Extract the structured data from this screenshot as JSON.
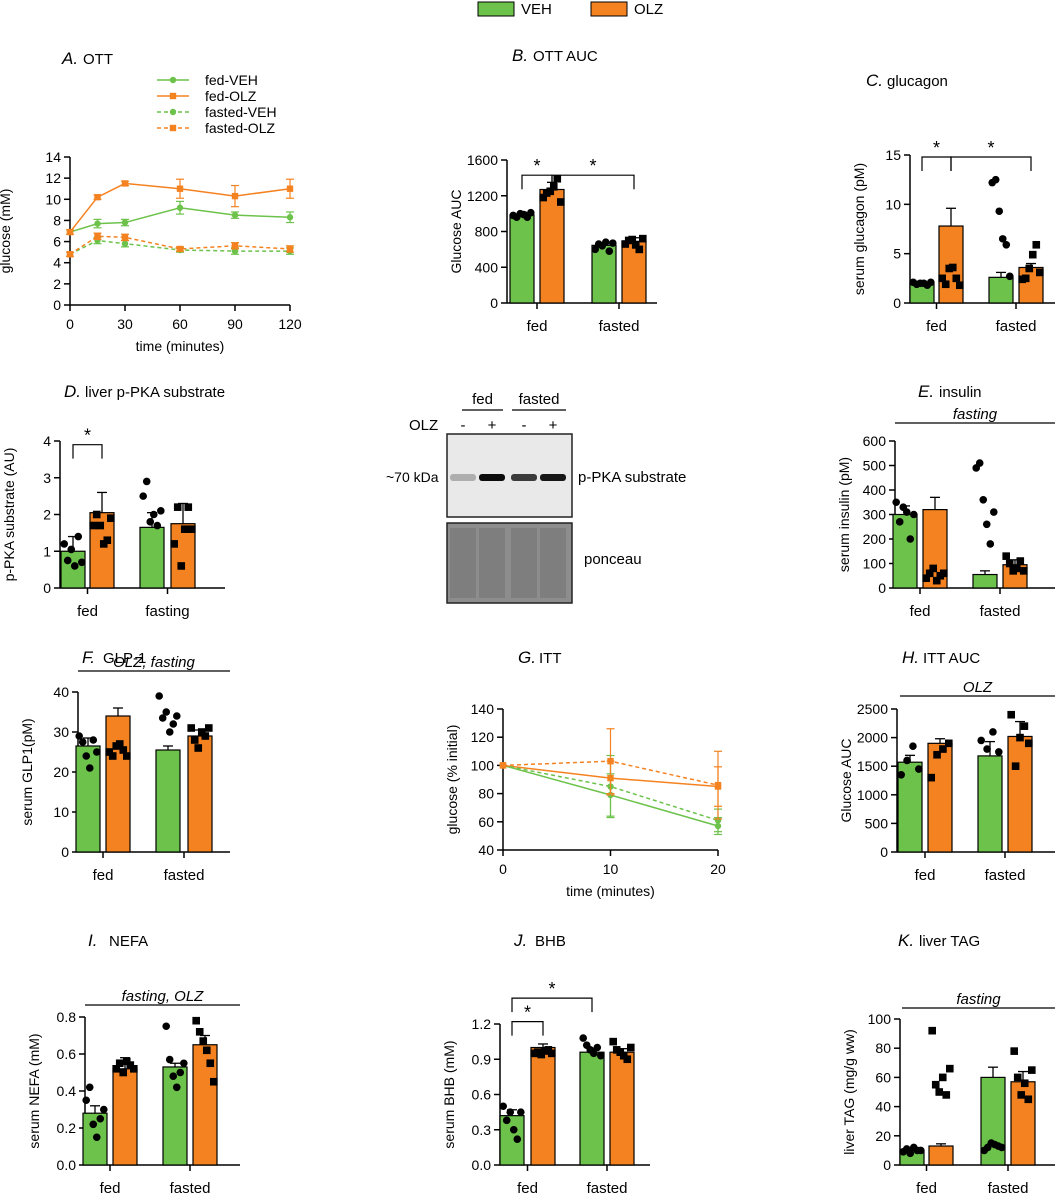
{
  "legend": {
    "items": [
      {
        "label": "VEH",
        "color": "#6CC24A"
      },
      {
        "label": "OLZ",
        "color": "#F58220"
      }
    ]
  },
  "colors": {
    "veh": "#6CC24A",
    "olz": "#F58220"
  },
  "chart_data": [
    {
      "id": "A",
      "type": "line",
      "letter": "A.",
      "title": "OTT",
      "xlabel": "time (minutes)",
      "ylabel": "glucose (mM)",
      "x": [
        0,
        15,
        30,
        60,
        90,
        120
      ],
      "xticks": [
        0,
        30,
        60,
        90,
        120
      ],
      "ylim": [
        0,
        14
      ],
      "yticks": [
        0,
        2,
        4,
        6,
        8,
        10,
        12,
        14
      ],
      "series": [
        {
          "name": "fed-VEH",
          "group": "veh",
          "marker": "circle",
          "dashed": false,
          "values": [
            6.9,
            7.7,
            7.8,
            9.2,
            8.5,
            8.3
          ],
          "err": [
            0.2,
            0.4,
            0.3,
            0.6,
            0.3,
            0.5
          ]
        },
        {
          "name": "fed-OLZ",
          "group": "olz",
          "marker": "square",
          "dashed": false,
          "values": [
            6.9,
            10.2,
            11.5,
            11.0,
            10.3,
            11.0
          ],
          "err": [
            0.2,
            0.2,
            0.2,
            0.9,
            1.0,
            0.9
          ]
        },
        {
          "name": "fasted-VEH",
          "group": "veh",
          "marker": "circle",
          "dashed": true,
          "values": [
            4.8,
            6.1,
            5.8,
            5.2,
            5.1,
            5.1
          ],
          "err": [
            0.2,
            0.3,
            0.3,
            0.2,
            0.3,
            0.3
          ]
        },
        {
          "name": "fasted-OLZ",
          "group": "olz",
          "marker": "square",
          "dashed": true,
          "values": [
            4.8,
            6.5,
            6.4,
            5.3,
            5.6,
            5.3
          ],
          "err": [
            0.2,
            0.3,
            0.3,
            0.2,
            0.3,
            0.3
          ]
        }
      ]
    },
    {
      "id": "B",
      "type": "bar",
      "letter": "B.",
      "title": "OTT AUC",
      "ylabel": "Glucose AUC",
      "categories": [
        "fed",
        "fasted"
      ],
      "ylim": [
        0,
        1600
      ],
      "yticks": [
        0,
        400,
        800,
        1200,
        1600
      ],
      "series": [
        {
          "group": "veh",
          "values": [
            985,
            645
          ],
          "err": [
            30,
            30
          ]
        },
        {
          "group": "olz",
          "values": [
            1270,
            690
          ],
          "err": [
            80,
            40
          ]
        }
      ],
      "points": [
        [
          [
            980,
            960,
            1000,
            990,
            960,
            1010
          ],
          [
            1180,
            1230,
            1250,
            1300,
            1390,
            1130
          ]
        ],
        [
          [
            600,
            660,
            640,
            680,
            580,
            670
          ],
          [
            660,
            700,
            710,
            650,
            600,
            720
          ]
        ]
      ],
      "brackets": [
        {
          "from": [
            0,
            0
          ],
          "to": [
            0,
            1
          ],
          "label": "*",
          "y": 1430
        },
        {
          "from": [
            0,
            1
          ],
          "to": [
            1,
            1
          ],
          "label": "*",
          "y": 1430
        }
      ]
    },
    {
      "id": "C",
      "type": "bar",
      "letter": "C.",
      "title": "glucagon",
      "ylabel": "serum glucagon (pM)",
      "categories": [
        "fed",
        "fasted"
      ],
      "ylim": [
        0,
        15
      ],
      "yticks": [
        0,
        5,
        10,
        15
      ],
      "series": [
        {
          "group": "veh",
          "values": [
            2.0,
            2.6
          ],
          "err": [
            0.2,
            0.5
          ]
        },
        {
          "group": "olz",
          "values": [
            7.8,
            3.6
          ],
          "err": [
            1.8,
            0.4
          ]
        }
      ],
      "points": [
        [
          [
            2.1,
            1.9,
            2.0,
            2.0,
            1.8,
            2.1
          ],
          [
            2.5,
            1.9,
            3.5,
            3.6,
            2.5,
            1.8
          ]
        ],
        [
          [
            12.2,
            12.5,
            9.3,
            6.5,
            5.9,
            2.7
          ],
          [
            2.4,
            2.5,
            3.5,
            4.9,
            5.9,
            3.1
          ]
        ]
      ],
      "brackets": [
        {
          "from": [
            0,
            0
          ],
          "to": [
            0,
            1
          ],
          "label": "*",
          "y": 14.8
        },
        {
          "from": [
            0,
            1
          ],
          "to": [
            1,
            1
          ],
          "label": "*",
          "y": 14.8
        }
      ]
    },
    {
      "id": "D",
      "type": "bar",
      "letter": "D.",
      "title": "liver p-PKA substrate",
      "ylabel": "p-PKA substrate (AU)",
      "categories": [
        "fed",
        "fasting"
      ],
      "ylim": [
        0,
        4
      ],
      "yticks": [
        0,
        1,
        2,
        3,
        4
      ],
      "series": [
        {
          "group": "veh",
          "values": [
            1.0,
            1.65
          ],
          "err": [
            0.4,
            0.4
          ]
        },
        {
          "group": "olz",
          "values": [
            2.05,
            1.75
          ],
          "err": [
            0.55,
            0.55
          ]
        }
      ],
      "points": [
        [
          [
            1.2,
            0.75,
            1.05,
            0.6,
            1.4,
            0.7
          ],
          [
            1.7,
            2.0,
            1.7,
            1.2,
            1.3,
            1.9
          ]
        ],
        [
          [
            2.5,
            2.9,
            1.8,
            2.0,
            1.7,
            2.1
          ],
          [
            1.2,
            2.2,
            0.6,
            1.6,
            2.2,
            1.6
          ]
        ]
      ],
      "brackets": [
        {
          "from": [
            0,
            0
          ],
          "to": [
            0,
            1
          ],
          "label": "*",
          "y": 3.9
        }
      ]
    },
    {
      "id": "E",
      "type": "bar",
      "letter": "E.",
      "title": "insulin",
      "ylabel": "serum insulin (pM)",
      "note": "fasting",
      "categories": [
        "fed",
        "fasted"
      ],
      "ylim": [
        0,
        600
      ],
      "yticks": [
        0,
        100,
        200,
        300,
        400,
        500,
        600
      ],
      "series": [
        {
          "group": "veh",
          "values": [
            300,
            55
          ],
          "err": [
            35,
            15
          ]
        },
        {
          "group": "olz",
          "values": [
            320,
            95
          ],
          "err": [
            50,
            20
          ]
        }
      ],
      "points": [
        [
          [
            350,
            270,
            330,
            310,
            200,
            300
          ],
          [
            40,
            60,
            80,
            30,
            50,
            60
          ]
        ],
        [
          [
            490,
            510,
            360,
            260,
            180,
            310
          ],
          [
            130,
            100,
            70,
            80,
            110,
            70
          ]
        ]
      ]
    },
    {
      "id": "F",
      "type": "bar",
      "letter": "F.",
      "title": "GLP-1",
      "ylabel": "serum GLP1(pM)",
      "note": "OLZ, fasting",
      "categories": [
        "fed",
        "fasted"
      ],
      "ylim": [
        0,
        40
      ],
      "yticks": [
        0,
        10,
        20,
        30,
        40
      ],
      "series": [
        {
          "group": "veh",
          "values": [
            26.5,
            25.5
          ],
          "err": [
            2.0,
            1.0
          ]
        },
        {
          "group": "olz",
          "values": [
            34.0,
            29.0
          ],
          "err": [
            2.0,
            1.5
          ]
        }
      ],
      "points": [
        [
          [
            29,
            27.5,
            24,
            21,
            28,
            25
          ],
          [
            25,
            24,
            26.5,
            27,
            25.5,
            24
          ]
        ],
        [
          [
            39,
            33.5,
            35,
            30,
            32,
            34
          ],
          [
            31,
            28,
            26,
            30,
            29,
            31
          ]
        ]
      ]
    },
    {
      "id": "G",
      "type": "line",
      "letter": "G.",
      "title": "ITT",
      "xlabel": "time (minutes)",
      "ylabel": "glucose (% initial)",
      "x": [
        0,
        10,
        20
      ],
      "xticks": [
        0,
        10,
        20
      ],
      "ylim": [
        40,
        140
      ],
      "yticks": [
        40,
        60,
        80,
        100,
        120,
        140
      ],
      "series": [
        {
          "group": "veh",
          "marker": "circle",
          "dashed": false,
          "values": [
            100,
            79,
            57
          ],
          "err": [
            0,
            15,
            6
          ]
        },
        {
          "group": "olz",
          "marker": "square",
          "dashed": false,
          "values": [
            100,
            91,
            85
          ],
          "err": [
            0,
            12,
            14
          ]
        },
        {
          "group": "veh",
          "marker": "circle",
          "dashed": true,
          "values": [
            100,
            85,
            61
          ],
          "err": [
            0,
            22,
            8
          ]
        },
        {
          "group": "olz",
          "marker": "square",
          "dashed": true,
          "values": [
            100,
            103,
            86
          ],
          "err": [
            0,
            23,
            24
          ]
        }
      ]
    },
    {
      "id": "H",
      "type": "bar",
      "letter": "H.",
      "title": "ITT AUC",
      "ylabel": "Glucose AUC",
      "note": "OLZ",
      "categories": [
        "fed",
        "fasted"
      ],
      "ylim": [
        0,
        2500
      ],
      "yticks": [
        0,
        500,
        1000,
        1500,
        2000,
        2500
      ],
      "series": [
        {
          "group": "veh",
          "values": [
            1570,
            1680
          ],
          "err": [
            120,
            250
          ]
        },
        {
          "group": "olz",
          "values": [
            1900,
            2020
          ],
          "err": [
            80,
            260
          ]
        }
      ],
      "points": [
        [
          [
            1350,
            1600,
            1850,
            1450
          ],
          [
            1300,
            1700,
            1800,
            1900
          ]
        ],
        [
          [
            1950,
            1800,
            2100,
            1750
          ],
          [
            2400,
            1500,
            2000,
            2200,
            1900
          ]
        ]
      ]
    },
    {
      "id": "I",
      "type": "bar",
      "letter": "I.",
      "title": "NEFA",
      "ylabel": "serum NEFA (mM)",
      "note": "fasting, OLZ",
      "categories": [
        "fed",
        "fasted"
      ],
      "ylim": [
        0,
        0.8
      ],
      "yticks": [
        0.0,
        0.2,
        0.4,
        0.6,
        0.8
      ],
      "series": [
        {
          "group": "veh",
          "values": [
            0.28,
            0.53
          ],
          "err": [
            0.04,
            0.02
          ]
        },
        {
          "group": "olz",
          "values": [
            0.52,
            0.65
          ],
          "err": [
            0.06,
            0.05
          ]
        }
      ],
      "points": [
        [
          [
            0.35,
            0.42,
            0.22,
            0.15,
            0.25,
            0.3
          ],
          [
            0.52,
            0.55,
            0.5,
            0.56,
            0.54,
            0.52
          ]
        ],
        [
          [
            0.75,
            0.57,
            0.48,
            0.42,
            0.5,
            0.55
          ],
          [
            0.78,
            0.72,
            0.67,
            0.62,
            0.55,
            0.45
          ]
        ]
      ]
    },
    {
      "id": "J",
      "type": "bar",
      "letter": "J.",
      "title": "BHB",
      "ylabel": "serum BHB (mM)",
      "categories": [
        "fed",
        "fasted"
      ],
      "ylim": [
        0,
        1.2
      ],
      "yticks": [
        0.0,
        0.3,
        0.6,
        0.9,
        1.2
      ],
      "series": [
        {
          "group": "veh",
          "values": [
            0.42,
            0.96
          ],
          "err": [
            0.05,
            0.02
          ]
        },
        {
          "group": "olz",
          "values": [
            1.0,
            0.96
          ],
          "err": [
            0.03,
            0.03
          ]
        }
      ],
      "points": [
        [
          [
            0.5,
            0.38,
            0.45,
            0.3,
            0.22,
            0.45
          ],
          [
            0.95,
            0.96,
            0.94,
            0.97,
            0.98,
            0.95
          ]
        ],
        [
          [
            1.08,
            1.02,
            0.98,
            0.95,
            1.0,
            0.93
          ],
          [
            1.05,
            0.98,
            0.96,
            0.93,
            0.9,
            1.0
          ]
        ]
      ],
      "brackets": [
        {
          "from": [
            0,
            0
          ],
          "to": [
            0,
            1
          ],
          "label": "*",
          "y": 1.22
        },
        {
          "from": [
            0,
            0
          ],
          "to": [
            1,
            0
          ],
          "label": "*",
          "y": 1.42
        }
      ]
    },
    {
      "id": "K",
      "type": "bar",
      "letter": "K.",
      "title": "liver TAG",
      "ylabel": "liver TAG (mg/g ww)",
      "note": "fasting",
      "categories": [
        "fed",
        "fasted"
      ],
      "ylim": [
        0,
        100
      ],
      "yticks": [
        0,
        20,
        40,
        60,
        80,
        100
      ],
      "series": [
        {
          "group": "veh",
          "values": [
            10,
            60
          ],
          "err": [
            1,
            7
          ]
        },
        {
          "group": "olz",
          "values": [
            13,
            57
          ],
          "err": [
            1.5,
            7
          ]
        }
      ],
      "points": [
        [
          [
            9,
            11,
            8,
            12,
            10,
            10
          ],
          [
            92,
            55,
            50,
            60,
            48,
            66
          ]
        ],
        [
          [
            10,
            12,
            15,
            14,
            13,
            12
          ],
          [
            78,
            60,
            48,
            56,
            45,
            65
          ]
        ]
      ]
    }
  ],
  "blot": {
    "groups": [
      "fed",
      "fasted"
    ],
    "lane_row_label": "OLZ",
    "lanes": [
      "-",
      "+",
      "-",
      "+"
    ],
    "mw_label": "~70 kDa",
    "band_label": "p-PKA substrate",
    "stain_label": "ponceau"
  }
}
